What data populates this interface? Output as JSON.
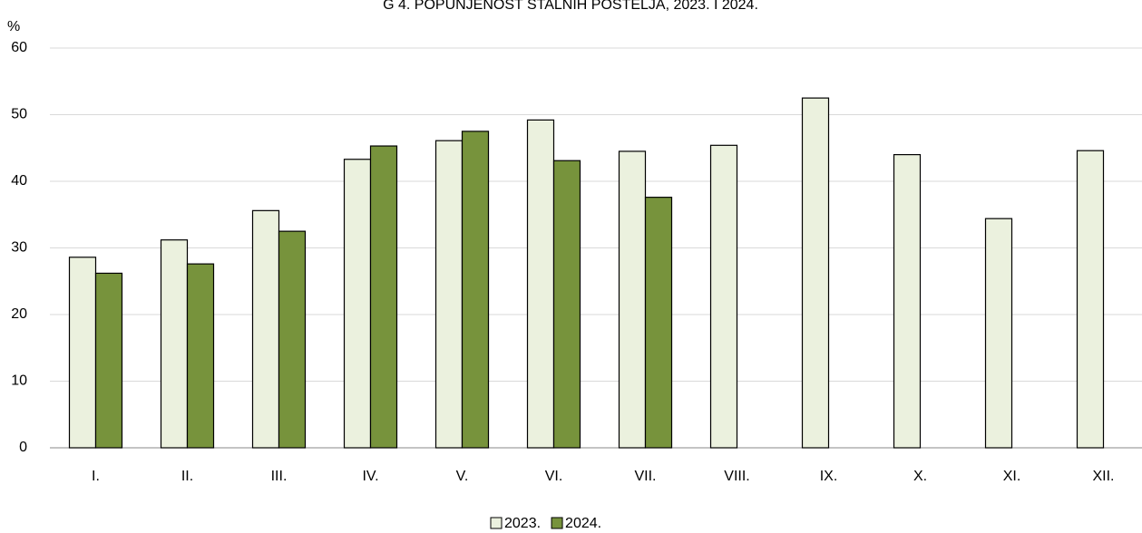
{
  "chart_data": {
    "type": "bar",
    "title": "G 4. POPUNJENOST STALNIH POSTELJA, 2023. I 2024.",
    "y_label": "%",
    "categories": [
      "I.",
      "II.",
      "III.",
      "IV.",
      "V.",
      "VI.",
      "VII.",
      "VIII.",
      "IX.",
      "X.",
      "XI.",
      "XII."
    ],
    "series": [
      {
        "name": "2023.",
        "color": "#ebf1de",
        "values": [
          28.6,
          31.2,
          35.6,
          43.3,
          46.1,
          49.2,
          44.5,
          45.4,
          52.5,
          44.0,
          34.4,
          44.6
        ]
      },
      {
        "name": "2024.",
        "color": "#77933c",
        "values": [
          26.2,
          27.6,
          32.5,
          45.3,
          47.5,
          43.1,
          37.6,
          null,
          null,
          null,
          null,
          null
        ]
      }
    ],
    "ylim": [
      0,
      60
    ],
    "yticks": [
      0,
      10,
      20,
      30,
      40,
      50,
      60
    ],
    "grid": true,
    "legend": "bottom"
  }
}
